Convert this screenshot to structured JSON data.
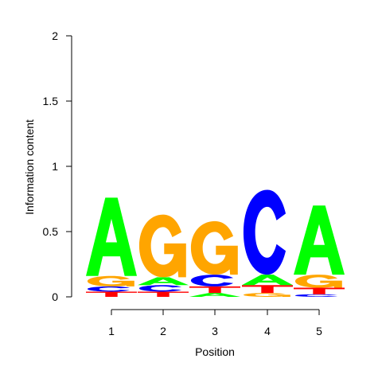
{
  "chart_data": {
    "type": "sequence-logo",
    "xlabel": "Position",
    "ylabel": "Information content",
    "ylim": [
      0,
      2
    ],
    "yticks": [
      "0",
      "0.5",
      "1",
      "1.5",
      "2"
    ],
    "xticks": [
      "1",
      "2",
      "3",
      "4",
      "5"
    ],
    "colors": {
      "A": "#00ff00",
      "C": "#0000ff",
      "G": "#ffa500",
      "T": "#ff0000"
    },
    "positions": [
      {
        "label": "1",
        "stack": [
          {
            "letter": "T",
            "height": 0.04
          },
          {
            "letter": "C",
            "height": 0.04
          },
          {
            "letter": "G",
            "height": 0.08
          },
          {
            "letter": "A",
            "height": 0.6
          }
        ]
      },
      {
        "label": "2",
        "stack": [
          {
            "letter": "T",
            "height": 0.04
          },
          {
            "letter": "C",
            "height": 0.05
          },
          {
            "letter": "A",
            "height": 0.06
          },
          {
            "letter": "G",
            "height": 0.48
          }
        ]
      },
      {
        "label": "3",
        "stack": [
          {
            "letter": "A",
            "height": 0.03
          },
          {
            "letter": "T",
            "height": 0.05
          },
          {
            "letter": "C",
            "height": 0.09
          },
          {
            "letter": "G",
            "height": 0.41
          }
        ]
      },
      {
        "label": "4",
        "stack": [
          {
            "letter": "G",
            "height": 0.03
          },
          {
            "letter": "T",
            "height": 0.06
          },
          {
            "letter": "A",
            "height": 0.08
          },
          {
            "letter": "C",
            "height": 0.65
          }
        ]
      },
      {
        "label": "5",
        "stack": [
          {
            "letter": "C",
            "height": 0.02
          },
          {
            "letter": "T",
            "height": 0.05
          },
          {
            "letter": "G",
            "height": 0.1
          },
          {
            "letter": "A",
            "height": 0.53
          }
        ]
      }
    ]
  }
}
